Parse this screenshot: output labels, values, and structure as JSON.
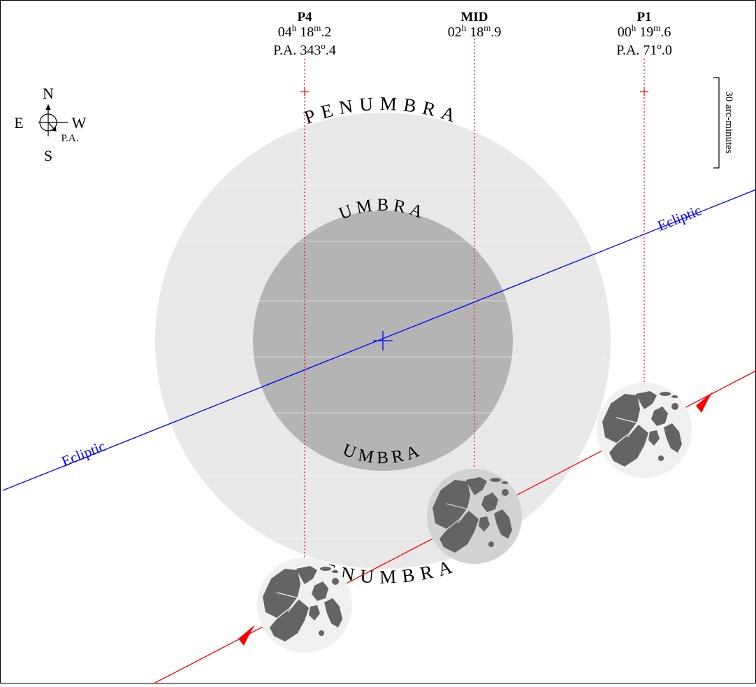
{
  "phases": [
    {
      "id": "p4",
      "name": "P4",
      "time_h": "04",
      "time_m": "18",
      "time_frac": "2",
      "pa_prefix": "P.A. ",
      "pa_int": "343",
      "pa_frac": "4"
    },
    {
      "id": "mid",
      "name": "MID",
      "time_h": "02",
      "time_m": "18",
      "time_frac": "9",
      "pa_prefix": "",
      "pa_int": "",
      "pa_frac": ""
    },
    {
      "id": "p1",
      "name": "P1",
      "time_h": "00",
      "time_m": "19",
      "time_frac": "6",
      "pa_prefix": "P.A. ",
      "pa_int": "71",
      "pa_frac": "0"
    }
  ],
  "units": {
    "hour": "h",
    "minute": "m",
    "degree": "o"
  },
  "compass": {
    "north": "N",
    "south": "S",
    "east": "E",
    "west": "W",
    "pa": "P.A."
  },
  "scale_label": "30 arc-minutes",
  "labels": {
    "penumbra": "PENUMBRA",
    "umbra": "UMBRA",
    "ecliptic": "Ecliptic"
  },
  "colors": {
    "penumbra": "#e8e8e8",
    "umbra": "#b4b4b4",
    "ecliptic": "#0000ff",
    "moon_path": "#ff0000",
    "time_marker": "#ff0000",
    "moon_light": "#f0f0f0",
    "moon_mid": "#d2d2d2",
    "maria": "#646464"
  }
}
